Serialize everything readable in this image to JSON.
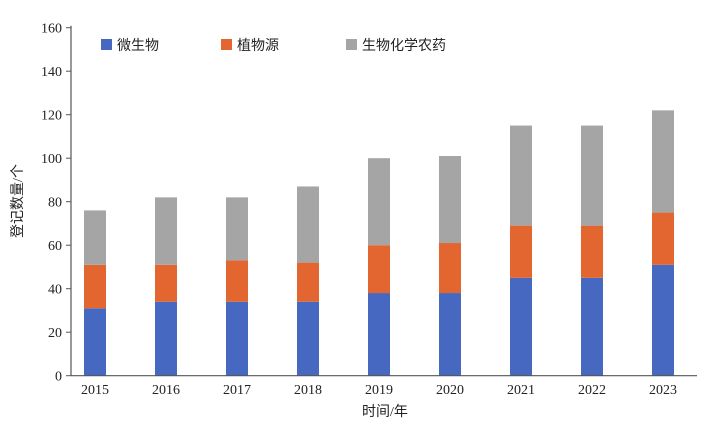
{
  "chart_data": {
    "type": "bar",
    "stacked": true,
    "categories": [
      "2015",
      "2016",
      "2017",
      "2018",
      "2019",
      "2020",
      "2021",
      "2022",
      "2023"
    ],
    "series": [
      {
        "name": "微生物",
        "color": "#4668C0",
        "values": [
          31,
          34,
          34,
          34,
          38,
          38,
          45,
          45,
          51
        ]
      },
      {
        "name": "植物源",
        "color": "#E36631",
        "values": [
          20,
          17,
          19,
          18,
          22,
          23,
          24,
          24,
          24
        ]
      },
      {
        "name": "生物化学农药",
        "color": "#A5A5A5",
        "values": [
          25,
          31,
          29,
          35,
          40,
          40,
          46,
          46,
          47
        ]
      }
    ],
    "xlabel": "时间/年",
    "ylabel": "登记数量/个",
    "ylim": [
      0,
      160
    ],
    "yticks": [
      "0",
      "20",
      "40",
      "60",
      "80",
      "100",
      "120",
      "140",
      "160"
    ],
    "grid": false,
    "legend": "top"
  }
}
